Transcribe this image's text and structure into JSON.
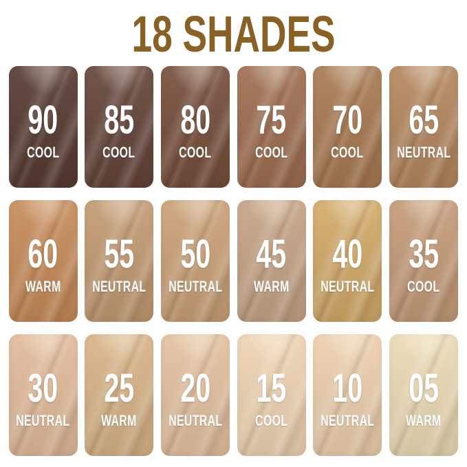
{
  "title": "18 SHADES",
  "colors": {
    "title_text": "#8a6124",
    "swatch_text": "#ffffff",
    "background": "#ffffff"
  },
  "shades": [
    {
      "number": "90",
      "undertone": "COOL",
      "color": "#573b31"
    },
    {
      "number": "85",
      "undertone": "COOL",
      "color": "#644439"
    },
    {
      "number": "80",
      "undertone": "COOL",
      "color": "#764e3a"
    },
    {
      "number": "75",
      "undertone": "COOL",
      "color": "#9e6e50"
    },
    {
      "number": "70",
      "undertone": "COOL",
      "color": "#a87a52"
    },
    {
      "number": "65",
      "undertone": "NEUTRAL",
      "color": "#b4875f"
    },
    {
      "number": "60",
      "undertone": "WARM",
      "color": "#c68b59"
    },
    {
      "number": "55",
      "undertone": "NEUTRAL",
      "color": "#c29a72"
    },
    {
      "number": "50",
      "undertone": "NEUTRAL",
      "color": "#caa177"
    },
    {
      "number": "45",
      "undertone": "WARM",
      "color": "#c5a486"
    },
    {
      "number": "40",
      "undertone": "NEUTRAL",
      "color": "#d2aa69"
    },
    {
      "number": "35",
      "undertone": "COOL",
      "color": "#c49b78"
    },
    {
      "number": "30",
      "undertone": "NEUTRAL",
      "color": "#e2bb9a"
    },
    {
      "number": "25",
      "undertone": "WARM",
      "color": "#d8b487"
    },
    {
      "number": "20",
      "undertone": "NEUTRAL",
      "color": "#e4c19f"
    },
    {
      "number": "15",
      "undertone": "COOL",
      "color": "#f0d4b3"
    },
    {
      "number": "10",
      "undertone": "NEUTRAL",
      "color": "#edcfad"
    },
    {
      "number": "05",
      "undertone": "WARM",
      "color": "#ecdbb5"
    }
  ]
}
